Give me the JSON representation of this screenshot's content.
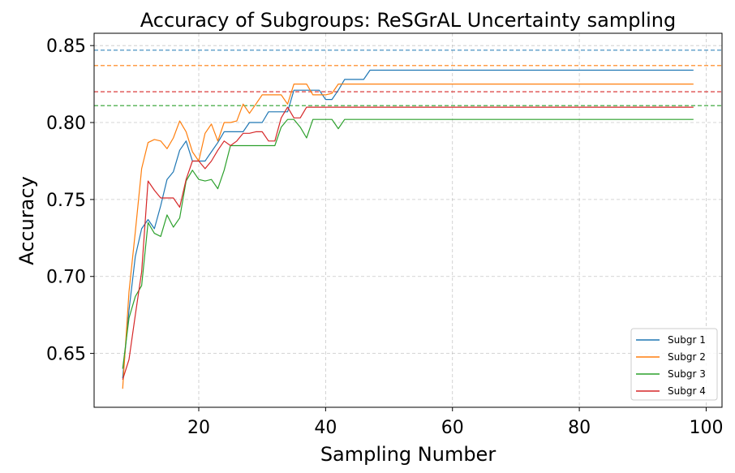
{
  "chart_data": {
    "type": "line",
    "title": "Accuracy of Subgroups: ReSGrAL Uncertainty sampling",
    "xlabel": "Sampling Number",
    "ylabel": "Accuracy",
    "xlim": [
      3.5,
      102.5
    ],
    "ylim": [
      0.615,
      0.858
    ],
    "xticks": [
      20,
      40,
      60,
      80,
      100
    ],
    "yticks": [
      0.65,
      0.7,
      0.75,
      0.8,
      0.85
    ],
    "xtick_labels": [
      "20",
      "40",
      "60",
      "80",
      "100"
    ],
    "ytick_labels": [
      "0.65",
      "0.70",
      "0.75",
      "0.80",
      "0.85"
    ],
    "grid": true,
    "legend_position": "lower-right",
    "x": [
      8,
      9,
      10,
      11,
      12,
      13,
      14,
      15,
      16,
      17,
      18,
      19,
      20,
      21,
      22,
      23,
      24,
      25,
      26,
      27,
      28,
      29,
      30,
      31,
      32,
      33,
      34,
      35,
      36,
      37,
      38,
      39,
      40,
      41,
      42,
      43,
      44,
      45,
      46,
      47,
      48,
      49,
      50,
      51,
      52,
      53,
      54,
      55,
      56,
      57,
      58,
      59,
      60,
      61,
      62,
      63,
      64,
      65,
      66,
      67,
      68,
      69,
      70,
      71,
      72,
      73,
      74,
      75,
      76,
      77,
      78,
      79,
      80,
      81,
      82,
      83,
      84,
      85,
      86,
      87,
      88,
      89,
      90,
      91,
      92,
      93,
      94,
      95,
      96,
      97,
      98
    ],
    "series": [
      {
        "name": "Subgr 1",
        "color": "#1f77b4",
        "reference": 0.847,
        "values": [
          0.634,
          0.678,
          0.713,
          0.731,
          0.737,
          0.731,
          0.746,
          0.763,
          0.768,
          0.782,
          0.788,
          0.775,
          0.775,
          0.775,
          0.781,
          0.787,
          0.794,
          0.794,
          0.794,
          0.794,
          0.8,
          0.8,
          0.8,
          0.807,
          0.807,
          0.807,
          0.807,
          0.821,
          0.821,
          0.821,
          0.821,
          0.821,
          0.815,
          0.815,
          0.821,
          0.828,
          0.828,
          0.828,
          0.828,
          0.834,
          0.834,
          0.834,
          0.834,
          0.834,
          0.834,
          0.834,
          0.834,
          0.834,
          0.834,
          0.834,
          0.834,
          0.834,
          0.834,
          0.834,
          0.834,
          0.834,
          0.834,
          0.834,
          0.834,
          0.834,
          0.834,
          0.834,
          0.834,
          0.834,
          0.834,
          0.834,
          0.834,
          0.834,
          0.834,
          0.834,
          0.834,
          0.834,
          0.834,
          0.834,
          0.834,
          0.834,
          0.834,
          0.834,
          0.834,
          0.834,
          0.834,
          0.834,
          0.834,
          0.834,
          0.834,
          0.834,
          0.834,
          0.834,
          0.834,
          0.834,
          0.834
        ]
      },
      {
        "name": "Subgr 2",
        "color": "#ff7f0e",
        "reference": 0.837,
        "values": [
          0.627,
          0.69,
          0.729,
          0.77,
          0.787,
          0.789,
          0.788,
          0.783,
          0.79,
          0.801,
          0.794,
          0.781,
          0.775,
          0.793,
          0.799,
          0.788,
          0.8,
          0.8,
          0.801,
          0.812,
          0.806,
          0.812,
          0.818,
          0.818,
          0.818,
          0.818,
          0.812,
          0.825,
          0.825,
          0.825,
          0.818,
          0.818,
          0.818,
          0.819,
          0.825,
          0.825,
          0.825,
          0.825,
          0.825,
          0.825,
          0.825,
          0.825,
          0.825,
          0.825,
          0.825,
          0.825,
          0.825,
          0.825,
          0.825,
          0.825,
          0.825,
          0.825,
          0.825,
          0.825,
          0.825,
          0.825,
          0.825,
          0.825,
          0.825,
          0.825,
          0.825,
          0.825,
          0.825,
          0.825,
          0.825,
          0.825,
          0.825,
          0.825,
          0.825,
          0.825,
          0.825,
          0.825,
          0.825,
          0.825,
          0.825,
          0.825,
          0.825,
          0.825,
          0.825,
          0.825,
          0.825,
          0.825,
          0.825,
          0.825,
          0.825,
          0.825,
          0.825,
          0.825,
          0.825,
          0.825,
          0.825
        ]
      },
      {
        "name": "Subgr 3",
        "color": "#2ca02c",
        "reference": 0.811,
        "values": [
          0.64,
          0.673,
          0.687,
          0.694,
          0.735,
          0.728,
          0.726,
          0.74,
          0.732,
          0.738,
          0.762,
          0.769,
          0.763,
          0.762,
          0.763,
          0.757,
          0.769,
          0.785,
          0.785,
          0.785,
          0.785,
          0.785,
          0.785,
          0.785,
          0.785,
          0.797,
          0.802,
          0.802,
          0.797,
          0.79,
          0.802,
          0.802,
          0.802,
          0.802,
          0.796,
          0.802,
          0.802,
          0.802,
          0.802,
          0.802,
          0.802,
          0.802,
          0.802,
          0.802,
          0.802,
          0.802,
          0.802,
          0.802,
          0.802,
          0.802,
          0.802,
          0.802,
          0.802,
          0.802,
          0.802,
          0.802,
          0.802,
          0.802,
          0.802,
          0.802,
          0.802,
          0.802,
          0.802,
          0.802,
          0.802,
          0.802,
          0.802,
          0.802,
          0.802,
          0.802,
          0.802,
          0.802,
          0.802,
          0.802,
          0.802,
          0.802,
          0.802,
          0.802,
          0.802,
          0.802,
          0.802,
          0.802,
          0.802,
          0.802,
          0.802,
          0.802,
          0.802,
          0.802,
          0.802,
          0.802,
          0.802
        ]
      },
      {
        "name": "Subgr 4",
        "color": "#d62728",
        "reference": 0.82,
        "values": [
          0.633,
          0.646,
          0.675,
          0.703,
          0.762,
          0.756,
          0.751,
          0.751,
          0.751,
          0.745,
          0.763,
          0.775,
          0.775,
          0.77,
          0.775,
          0.782,
          0.788,
          0.785,
          0.788,
          0.793,
          0.793,
          0.794,
          0.794,
          0.788,
          0.788,
          0.803,
          0.81,
          0.803,
          0.803,
          0.81,
          0.81,
          0.81,
          0.81,
          0.81,
          0.81,
          0.81,
          0.81,
          0.81,
          0.81,
          0.81,
          0.81,
          0.81,
          0.81,
          0.81,
          0.81,
          0.81,
          0.81,
          0.81,
          0.81,
          0.81,
          0.81,
          0.81,
          0.81,
          0.81,
          0.81,
          0.81,
          0.81,
          0.81,
          0.81,
          0.81,
          0.81,
          0.81,
          0.81,
          0.81,
          0.81,
          0.81,
          0.81,
          0.81,
          0.81,
          0.81,
          0.81,
          0.81,
          0.81,
          0.81,
          0.81,
          0.81,
          0.81,
          0.81,
          0.81,
          0.81,
          0.81,
          0.81,
          0.81,
          0.81,
          0.81,
          0.81,
          0.81,
          0.81,
          0.81,
          0.81,
          0.81
        ]
      }
    ]
  }
}
